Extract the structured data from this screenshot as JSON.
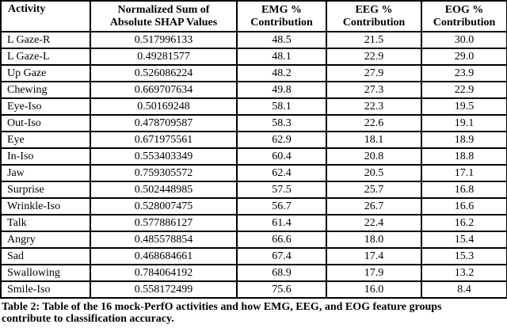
{
  "table": {
    "header": {
      "activity": "Activity",
      "shap_line1": "Normalized Sum of",
      "shap_line2": "Absolute SHAP Values",
      "emg_line1": "EMG %",
      "emg_line2": "Contribution",
      "eeg_line1": "EEG %",
      "eeg_line2": "Contribution",
      "eog_line1": "EOG %",
      "eog_line2": "Contribution"
    },
    "rows": [
      {
        "activity": "L Gaze-R",
        "shap": "0.517996133",
        "emg": "48.5",
        "eeg": "21.5",
        "eog": "30.0"
      },
      {
        "activity": "L Gaze-L",
        "shap": "0.49281577",
        "emg": "48.1",
        "eeg": "22.9",
        "eog": "29.0"
      },
      {
        "activity": "Up Gaze",
        "shap": "0.526086224",
        "emg": "48.2",
        "eeg": "27.9",
        "eog": "23.9"
      },
      {
        "activity": "Chewing",
        "shap": "0.669707634",
        "emg": "49.8",
        "eeg": "27.3",
        "eog": "22.9"
      },
      {
        "activity": "Eye-Iso",
        "shap": "0.50169248",
        "emg": "58.1",
        "eeg": "22.3",
        "eog": "19.5"
      },
      {
        "activity": "Out-Iso",
        "shap": "0.478709587",
        "emg": "58.3",
        "eeg": "22.6",
        "eog": "19.1"
      },
      {
        "activity": "Eye",
        "shap": "0.671975561",
        "emg": "62.9",
        "eeg": "18.1",
        "eog": "18.9"
      },
      {
        "activity": "In-Iso",
        "shap": "0.553403349",
        "emg": "60.4",
        "eeg": "20.8",
        "eog": "18.8"
      },
      {
        "activity": "Jaw",
        "shap": "0.759305572",
        "emg": "62.4",
        "eeg": "20.5",
        "eog": "17.1"
      },
      {
        "activity": "Surprise",
        "shap": "0.502448985",
        "emg": "57.5",
        "eeg": "25.7",
        "eog": "16.8"
      },
      {
        "activity": "Wrinkle-Iso",
        "shap": "0.528007475",
        "emg": "56.7",
        "eeg": "26.7",
        "eog": "16.6"
      },
      {
        "activity": "Talk",
        "shap": "0.577886127",
        "emg": "61.4",
        "eeg": "22.4",
        "eog": "16.2"
      },
      {
        "activity": "Angry",
        "shap": "0.485578854",
        "emg": "66.6",
        "eeg": "18.0",
        "eog": "15.4"
      },
      {
        "activity": "Sad",
        "shap": "0.468684661",
        "emg": "67.4",
        "eeg": "17.4",
        "eog": "15.3"
      },
      {
        "activity": "Swallowing",
        "shap": "0.784064192",
        "emg": "68.9",
        "eeg": "17.9",
        "eog": "13.2"
      },
      {
        "activity": "Smile-Iso",
        "shap": "0.558172499",
        "emg": "75.6",
        "eeg": "16.0",
        "eog": "8.4"
      }
    ]
  },
  "caption": {
    "line1": "Table 2: Table of the 16 mock-PerfO activities and how EMG, EEG, and EOG feature groups",
    "line2": "contribute to classification accuracy."
  },
  "colors": {
    "text": "#000000",
    "border": "#000000",
    "background": "#ffffff"
  }
}
